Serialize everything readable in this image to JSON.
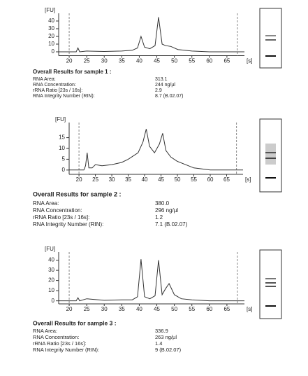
{
  "chart_data": [
    {
      "type": "line",
      "y_label": "[FU]",
      "x_label": "[s]",
      "xlim": [
        17,
        70
      ],
      "ylim": [
        -5,
        50
      ],
      "xticks": [
        20,
        25,
        30,
        35,
        40,
        45,
        50,
        55,
        60,
        65
      ],
      "yticks": [
        0,
        10,
        20,
        30,
        40
      ],
      "markers": [
        20,
        68
      ],
      "x": [
        17,
        20,
        22,
        22.5,
        23,
        25,
        30,
        35,
        38,
        39.5,
        40.5,
        41.5,
        43,
        44.5,
        45.5,
        46.5,
        47.5,
        49,
        51,
        55,
        60,
        70
      ],
      "series": [
        {
          "color": "#333333",
          "values": [
            0,
            0,
            0,
            5,
            0,
            1,
            0.5,
            1,
            2,
            5,
            20,
            6,
            4,
            8,
            45,
            10,
            8,
            7,
            3,
            1,
            0,
            0
          ]
        }
      ],
      "title": "Overall Results for sample 1 :",
      "results": [
        [
          "RNA Area:",
          "313.1"
        ],
        [
          "RNA Concentration:",
          "244 ng/µl"
        ],
        [
          "rRNA Ratio [23s / 16s]:",
          "2.9"
        ],
        [
          "RNA Integrity Number (RIN):",
          "8.7 (B.02.07)"
        ]
      ]
    },
    {
      "type": "line",
      "y_label": "[FU]",
      "x_label": "[s]",
      "xlim": [
        17,
        70
      ],
      "ylim": [
        -2,
        22
      ],
      "xticks": [
        20,
        25,
        30,
        35,
        40,
        45,
        50,
        55,
        60,
        65
      ],
      "yticks": [
        0,
        5,
        10,
        15
      ],
      "markers": [
        20,
        68
      ],
      "x": [
        17,
        20,
        21.5,
        22,
        22.5,
        23,
        24,
        25,
        27,
        30,
        33,
        35,
        38,
        39.5,
        40.5,
        41.5,
        43,
        44.5,
        45.5,
        46.5,
        48,
        50,
        55,
        60,
        70
      ],
      "series": [
        {
          "color": "#333333",
          "values": [
            0,
            0,
            0,
            2,
            8,
            1,
            1,
            2.5,
            2,
            2.5,
            3.5,
            5,
            8,
            13,
            19,
            11,
            8,
            12,
            17,
            9,
            6,
            4,
            1,
            0,
            0
          ]
        }
      ],
      "title": "Overall Results for sample 2 :",
      "results": [
        [
          "RNA Area:",
          "380.0"
        ],
        [
          "RNA Concentration:",
          "296 ng/µl"
        ],
        [
          "rRNA Ratio [23s / 16s]:",
          "1.2"
        ],
        [
          "RNA Integrity Number (RIN):",
          "7.1 (B.02.07)"
        ]
      ]
    },
    {
      "type": "line",
      "y_label": "[FU]",
      "x_label": "[s]",
      "xlim": [
        17,
        70
      ],
      "ylim": [
        -3,
        48
      ],
      "xticks": [
        20,
        25,
        30,
        35,
        40,
        45,
        50,
        55,
        60,
        65
      ],
      "yticks": [
        0,
        10,
        20,
        30,
        40
      ],
      "markers": [
        20,
        68
      ],
      "x": [
        17,
        20,
        22,
        22.5,
        23,
        25,
        30,
        35,
        38,
        39.5,
        40.5,
        41.5,
        43,
        44.5,
        45.5,
        46.5,
        47.5,
        48.5,
        50,
        52,
        55,
        60,
        70
      ],
      "series": [
        {
          "color": "#333333",
          "values": [
            0,
            0,
            0,
            3,
            0,
            2,
            0.5,
            1,
            1,
            4,
            41,
            4,
            2,
            5,
            40,
            6,
            12,
            17,
            6,
            2,
            1,
            0,
            0
          ]
        }
      ],
      "title": "Overall Results for sample 3 :",
      "results": [
        [
          "RNA Area:",
          "336.9"
        ],
        [
          "RNA Concentration:",
          "263 ng/µl"
        ],
        [
          "rRNA Ratio [23s / 16s]:",
          "1.4"
        ],
        [
          "RNA Integrity Number (RIN):",
          "9 (B.02.07)"
        ]
      ]
    }
  ]
}
